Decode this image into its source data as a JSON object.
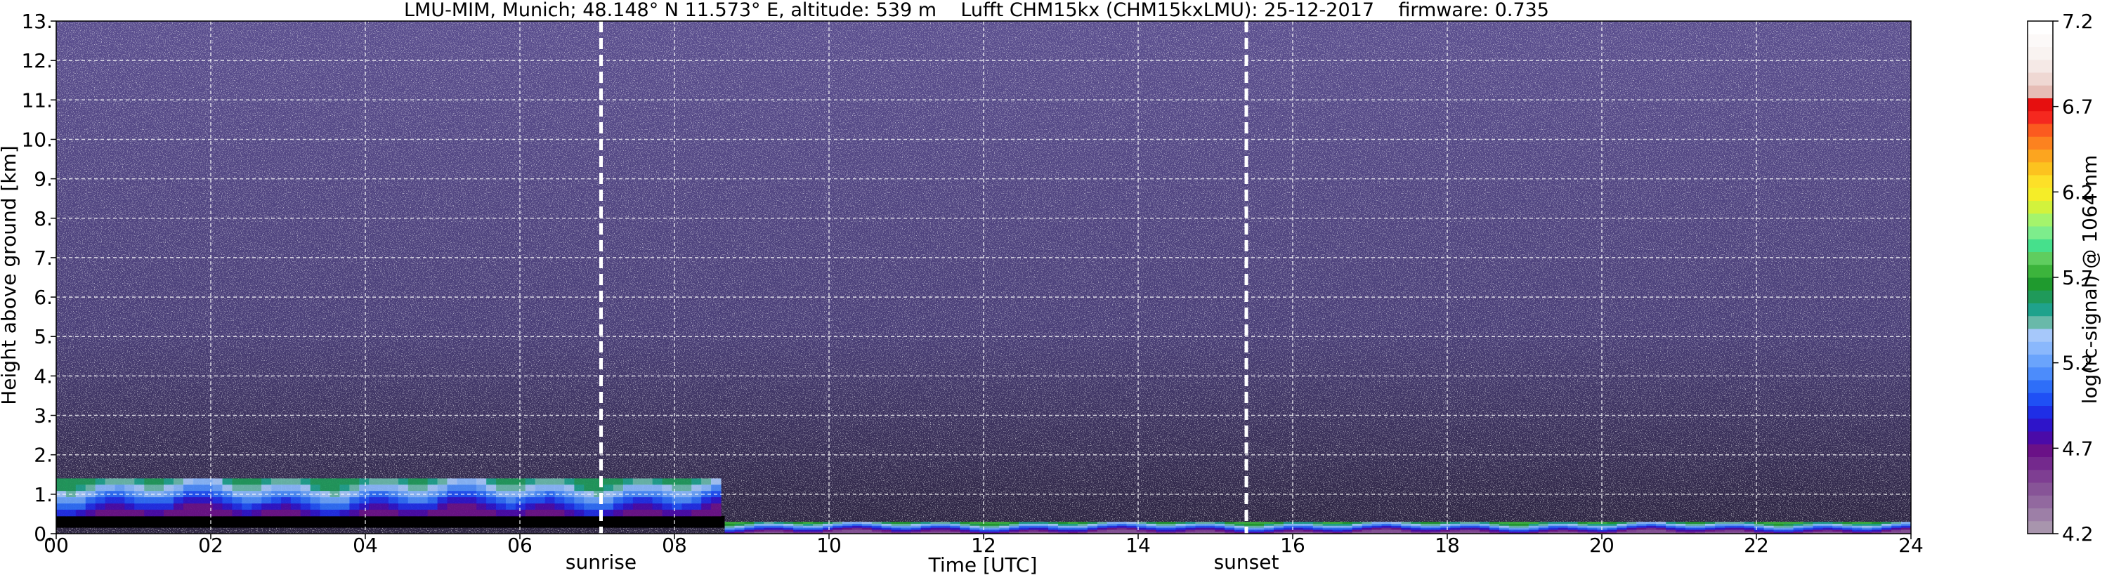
{
  "chart_data": {
    "type": "heatmap",
    "title": "LMU-MIM, Munich; 48.148° N 11.573° E, altitude: 539 m    Lufft CHM15kx (CHM15kxLMU): 25-12-2017    firmware: 0.735",
    "xlabel": "Time [UTC]",
    "ylabel": "Height above ground [km]",
    "xlim": [
      0,
      24
    ],
    "ylim": [
      0,
      13
    ],
    "x_ticks": [
      0,
      2,
      4,
      6,
      8,
      10,
      12,
      14,
      16,
      18,
      20,
      22,
      24
    ],
    "x_tick_labels": [
      "00",
      "02",
      "04",
      "06",
      "08",
      "10",
      "12",
      "14",
      "16",
      "18",
      "20",
      "22",
      "24"
    ],
    "y_ticks": [
      0,
      1,
      2,
      3,
      4,
      5,
      6,
      7,
      8,
      9,
      10,
      11,
      12,
      13
    ],
    "y_tick_labels": [
      "0.",
      "1.",
      "2.",
      "3.",
      "4.",
      "5.",
      "6.",
      "7.",
      "8.",
      "9.",
      "10.",
      "11.",
      "12.",
      "13."
    ],
    "grid": true,
    "markers": [
      {
        "label": "sunrise",
        "x": 7.05
      },
      {
        "label": "sunset",
        "x": 15.4
      }
    ],
    "colorbar": {
      "label": "log(rc-signal) @ 1064 nm",
      "min": 4.2,
      "max": 7.2,
      "ticks": [
        4.2,
        4.7,
        5.2,
        5.7,
        6.2,
        6.7,
        7.2
      ],
      "tick_labels": [
        "4.2",
        "4.7",
        "5.2",
        "5.7",
        "6.2",
        "6.7",
        "7.2"
      ],
      "colors": [
        "#a895ad",
        "#9d7fa7",
        "#92699f",
        "#875497",
        "#7e3e92",
        "#74298d",
        "#6a1187",
        "#4a0aa8",
        "#2e14c9",
        "#1f2ee6",
        "#1f50f5",
        "#2e6ef8",
        "#4c8cfb",
        "#6aa4fc",
        "#8ab8fc",
        "#a6c8fa",
        "#69b9a9",
        "#1fa28c",
        "#1f9a5a",
        "#1f9a2e",
        "#3cb43c",
        "#5fcd5f",
        "#46e08c",
        "#7ded8c",
        "#a4f46c",
        "#d2f23c",
        "#f5ed28",
        "#fde028",
        "#fcc31f",
        "#fca51f",
        "#fc821f",
        "#fb5a1f",
        "#f5281f",
        "#e60f0f",
        "#e6bdb6",
        "#efd8d3",
        "#f5e9e6",
        "#f9f3f1",
        "#fcf9f8",
        "#ffffff"
      ]
    },
    "background_signal_range": [
      4.3,
      4.9
    ],
    "layers": [
      {
        "x_start": 0,
        "x_end": 8.65,
        "y_bottom": 0.15,
        "y_top": 0.45,
        "signal": "missing (black)"
      },
      {
        "x_start": 0,
        "x_end": 8.6,
        "y_bottom": 0.45,
        "y_top": 1.4,
        "signal_range": [
          4.7,
          5.6
        ]
      },
      {
        "x_start": 8.65,
        "x_end": 24,
        "y_bottom": 0.0,
        "y_top": 0.3,
        "signal_range": [
          4.5,
          5.7
        ]
      }
    ]
  }
}
